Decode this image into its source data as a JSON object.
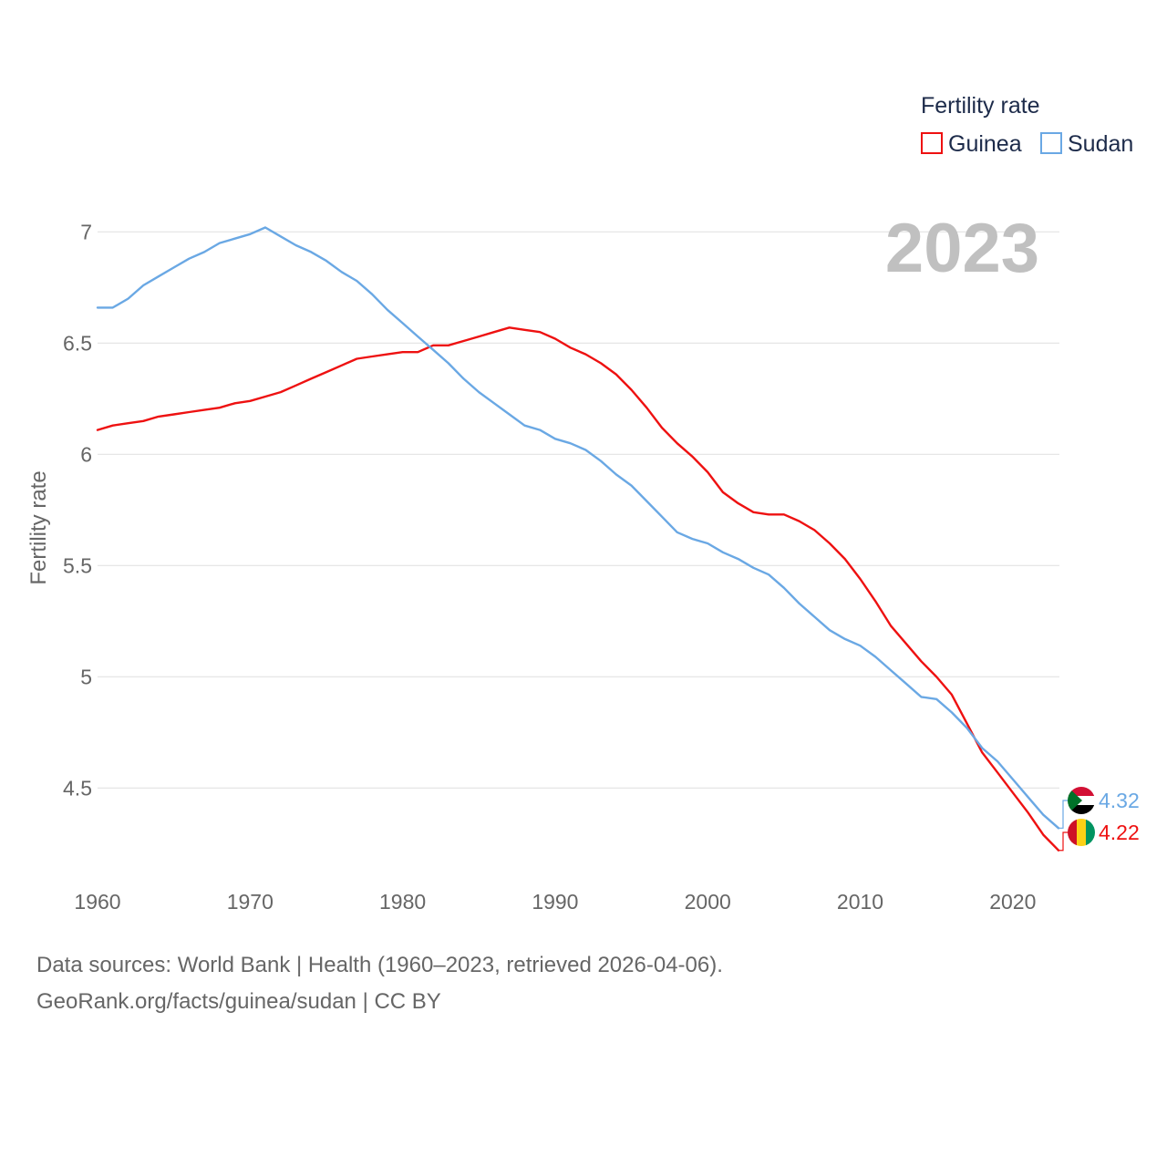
{
  "chart_data": {
    "type": "line",
    "title": "",
    "year_label": "2023",
    "ylabel": "Fertility rate",
    "xlabel": "",
    "ylim": [
      4.1,
      7.1
    ],
    "xlim": [
      1960,
      2023
    ],
    "yticks": [
      4.5,
      5,
      5.5,
      6,
      6.5,
      7
    ],
    "xticks": [
      1960,
      1970,
      1980,
      1990,
      2000,
      2010,
      2020
    ],
    "grid": true,
    "legend": {
      "title": "Fertility rate",
      "placement": "top-right",
      "entries": [
        "Guinea",
        "Sudan"
      ]
    },
    "x": [
      1960,
      1961,
      1962,
      1963,
      1964,
      1965,
      1966,
      1967,
      1968,
      1969,
      1970,
      1971,
      1972,
      1973,
      1974,
      1975,
      1976,
      1977,
      1978,
      1979,
      1980,
      1981,
      1982,
      1983,
      1984,
      1985,
      1986,
      1987,
      1988,
      1989,
      1990,
      1991,
      1992,
      1993,
      1994,
      1995,
      1996,
      1997,
      1998,
      1999,
      2000,
      2001,
      2002,
      2003,
      2004,
      2005,
      2006,
      2007,
      2008,
      2009,
      2010,
      2011,
      2012,
      2013,
      2014,
      2015,
      2016,
      2017,
      2018,
      2019,
      2020,
      2021,
      2022,
      2023
    ],
    "series": [
      {
        "name": "Guinea",
        "color": "#ee1111",
        "end_label": "4.22",
        "values": [
          6.11,
          6.13,
          6.14,
          6.15,
          6.17,
          6.18,
          6.19,
          6.2,
          6.21,
          6.23,
          6.24,
          6.26,
          6.28,
          6.31,
          6.34,
          6.37,
          6.4,
          6.43,
          6.44,
          6.45,
          6.46,
          6.46,
          6.49,
          6.49,
          6.51,
          6.53,
          6.55,
          6.57,
          6.56,
          6.55,
          6.52,
          6.48,
          6.45,
          6.41,
          6.36,
          6.29,
          6.21,
          6.12,
          6.05,
          5.99,
          5.92,
          5.83,
          5.78,
          5.74,
          5.73,
          5.73,
          5.7,
          5.66,
          5.6,
          5.53,
          5.44,
          5.34,
          5.23,
          5.15,
          5.07,
          5.0,
          4.92,
          4.79,
          4.66,
          4.57,
          4.48,
          4.39,
          4.29,
          4.22
        ]
      },
      {
        "name": "Sudan",
        "color": "#6aa8e4",
        "end_label": "4.32",
        "values": [
          6.66,
          6.66,
          6.7,
          6.76,
          6.8,
          6.84,
          6.88,
          6.91,
          6.95,
          6.97,
          6.99,
          7.02,
          6.98,
          6.94,
          6.91,
          6.87,
          6.82,
          6.78,
          6.72,
          6.65,
          6.59,
          6.53,
          6.47,
          6.41,
          6.34,
          6.28,
          6.23,
          6.18,
          6.13,
          6.11,
          6.07,
          6.05,
          6.02,
          5.97,
          5.91,
          5.86,
          5.79,
          5.72,
          5.65,
          5.62,
          5.6,
          5.56,
          5.53,
          5.49,
          5.46,
          5.4,
          5.33,
          5.27,
          5.21,
          5.17,
          5.14,
          5.09,
          5.03,
          4.97,
          4.91,
          4.9,
          4.84,
          4.77,
          4.68,
          4.62,
          4.54,
          4.46,
          4.38,
          4.32
        ]
      }
    ]
  },
  "footer": {
    "sources": "Data sources: World Bank | Health (1960–2023, retrieved 2026-04-06).",
    "credit": "GeoRank.org/facts/guinea/sudan | CC BY"
  },
  "flags": {
    "guinea": {
      "colors": [
        "#ce1126",
        "#fcd116",
        "#009460"
      ]
    },
    "sudan": {
      "colors": [
        "#d21034",
        "#ffffff",
        "#000000",
        "#007229"
      ]
    }
  }
}
